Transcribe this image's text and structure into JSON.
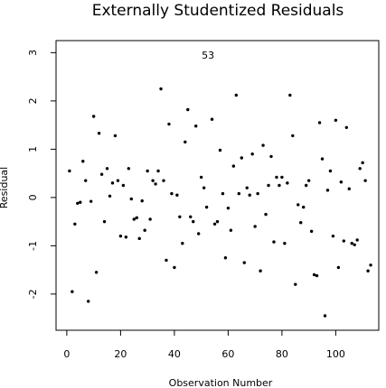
{
  "chart_data": {
    "type": "scatter",
    "title": "Externally Studentized Residuals",
    "xlabel": "Observation Number",
    "ylabel": "Residual",
    "xlim": [
      -4,
      116
    ],
    "ylim": [
      -2.75,
      3.25
    ],
    "xticks": [
      0,
      20,
      40,
      60,
      80,
      100
    ],
    "yticks": [
      -2,
      -1,
      0,
      1,
      2,
      3
    ],
    "grid": false,
    "annotations": [
      {
        "text": "53",
        "x": 52.5,
        "y": 2.95
      }
    ],
    "series": [
      {
        "points": [
          [
            1,
            0.55
          ],
          [
            2,
            -1.95
          ],
          [
            3,
            -0.55
          ],
          [
            4,
            -0.12
          ],
          [
            5,
            -0.1
          ],
          [
            6,
            0.75
          ],
          [
            7,
            0.35
          ],
          [
            8,
            -2.15
          ],
          [
            9,
            -0.08
          ],
          [
            10,
            1.68
          ],
          [
            11,
            -1.55
          ],
          [
            12,
            1.33
          ],
          [
            13,
            0.48
          ],
          [
            14,
            -0.5
          ],
          [
            15,
            0.6
          ],
          [
            16,
            0.03
          ],
          [
            17,
            0.3
          ],
          [
            18,
            1.28
          ],
          [
            19,
            0.35
          ],
          [
            20,
            -0.8
          ],
          [
            21,
            0.25
          ],
          [
            22,
            -0.82
          ],
          [
            23,
            0.6
          ],
          [
            24,
            -0.03
          ],
          [
            25,
            -0.45
          ],
          [
            26,
            -0.42
          ],
          [
            27,
            -0.85
          ],
          [
            28,
            -0.07
          ],
          [
            29,
            -0.68
          ],
          [
            30,
            0.55
          ],
          [
            31,
            -0.45
          ],
          [
            32,
            0.35
          ],
          [
            33,
            0.28
          ],
          [
            34,
            0.55
          ],
          [
            35,
            2.25
          ],
          [
            36,
            0.35
          ],
          [
            37,
            -1.3
          ],
          [
            38,
            1.52
          ],
          [
            39,
            0.08
          ],
          [
            40,
            -1.45
          ],
          [
            41,
            0.05
          ],
          [
            42,
            -0.4
          ],
          [
            43,
            -0.95
          ],
          [
            44,
            1.15
          ],
          [
            45,
            1.82
          ],
          [
            46,
            -0.4
          ],
          [
            47,
            -0.5
          ],
          [
            48,
            1.48
          ],
          [
            49,
            -0.75
          ],
          [
            50,
            0.42
          ],
          [
            51,
            0.2
          ],
          [
            52,
            -0.2
          ],
          [
            54,
            1.62
          ],
          [
            55,
            -0.55
          ],
          [
            56,
            -0.5
          ],
          [
            57,
            0.98
          ],
          [
            58,
            0.08
          ],
          [
            59,
            -1.25
          ],
          [
            60,
            -0.22
          ],
          [
            61,
            -0.68
          ],
          [
            62,
            0.65
          ],
          [
            63,
            2.12
          ],
          [
            64,
            0.08
          ],
          [
            65,
            0.82
          ],
          [
            66,
            -1.35
          ],
          [
            67,
            0.2
          ],
          [
            68,
            0.05
          ],
          [
            69,
            0.9
          ],
          [
            70,
            -0.6
          ],
          [
            71,
            0.08
          ],
          [
            72,
            -1.52
          ],
          [
            73,
            1.08
          ],
          [
            74,
            -0.35
          ],
          [
            75,
            0.25
          ],
          [
            76,
            0.85
          ],
          [
            77,
            -0.92
          ],
          [
            78,
            0.42
          ],
          [
            79,
            0.25
          ],
          [
            80,
            0.42
          ],
          [
            81,
            -0.95
          ],
          [
            82,
            0.3
          ],
          [
            83,
            2.12
          ],
          [
            84,
            1.28
          ],
          [
            85,
            -1.8
          ],
          [
            86,
            -0.15
          ],
          [
            87,
            -0.52
          ],
          [
            88,
            -0.2
          ],
          [
            89,
            0.25
          ],
          [
            90,
            0.35
          ],
          [
            91,
            -0.7
          ],
          [
            92,
            -1.6
          ],
          [
            93,
            -1.62
          ],
          [
            94,
            1.55
          ],
          [
            95,
            0.8
          ],
          [
            96,
            -2.45
          ],
          [
            97,
            0.15
          ],
          [
            98,
            0.55
          ],
          [
            99,
            -0.8
          ],
          [
            100,
            1.6
          ],
          [
            101,
            -1.45
          ],
          [
            102,
            0.32
          ],
          [
            103,
            -0.9
          ],
          [
            104,
            1.45
          ],
          [
            105,
            0.18
          ],
          [
            106,
            -0.95
          ],
          [
            107,
            -0.98
          ],
          [
            108,
            -0.88
          ],
          [
            109,
            0.6
          ],
          [
            110,
            0.72
          ],
          [
            111,
            0.35
          ],
          [
            112,
            -1.52
          ],
          [
            113,
            -1.4
          ]
        ]
      }
    ]
  }
}
